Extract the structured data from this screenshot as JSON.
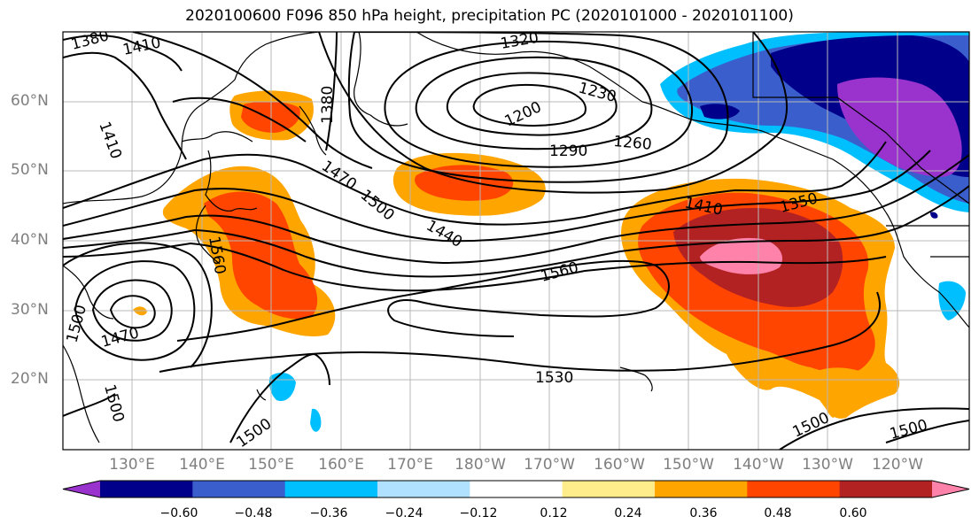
{
  "title": "2020100600 F096 850 hPa height, precipitation PC (2020101000 - 2020101100)",
  "map": {
    "lat_ticks": [
      {
        "deg": 60,
        "label": "60°N"
      },
      {
        "deg": 50,
        "label": "50°N"
      },
      {
        "deg": 40,
        "label": "40°N"
      },
      {
        "deg": 30,
        "label": "30°N"
      },
      {
        "deg": 20,
        "label": "20°N"
      }
    ],
    "lon_ticks": [
      {
        "deg": 130,
        "label": "130°E"
      },
      {
        "deg": 140,
        "label": "140°E"
      },
      {
        "deg": 150,
        "label": "150°E"
      },
      {
        "deg": 160,
        "label": "160°E"
      },
      {
        "deg": 170,
        "label": "170°E"
      },
      {
        "deg": 180,
        "label": "180°W"
      },
      {
        "deg": 190,
        "label": "170°W"
      },
      {
        "deg": 200,
        "label": "160°W"
      },
      {
        "deg": 210,
        "label": "150°W"
      },
      {
        "deg": 220,
        "label": "140°W"
      },
      {
        "deg": 230,
        "label": "130°W"
      },
      {
        "deg": 240,
        "label": "120°W"
      }
    ],
    "contour_labels": [
      "1380",
      "1410",
      "1320",
      "1230",
      "1200",
      "1260",
      "1290",
      "1380",
      "1410",
      "1470",
      "1500",
      "1440",
      "1410",
      "1350",
      "1560",
      "1500",
      "1470",
      "1500",
      "1530",
      "1500",
      "1500",
      "1500",
      "1560"
    ]
  },
  "colorbar": {
    "colors": [
      "#9a32cd",
      "#00008b",
      "#3a5fcd",
      "#00bfff",
      "#b0e2ff",
      "#ffffff",
      "#ffec8b",
      "#ffa500",
      "#ff4500",
      "#b22222",
      "#ff82ab"
    ],
    "labels": [
      "−0.60",
      "−0.48",
      "−0.36",
      "−0.24",
      "−0.12",
      "0.12",
      "0.24",
      "0.36",
      "0.48",
      "0.60"
    ]
  }
}
